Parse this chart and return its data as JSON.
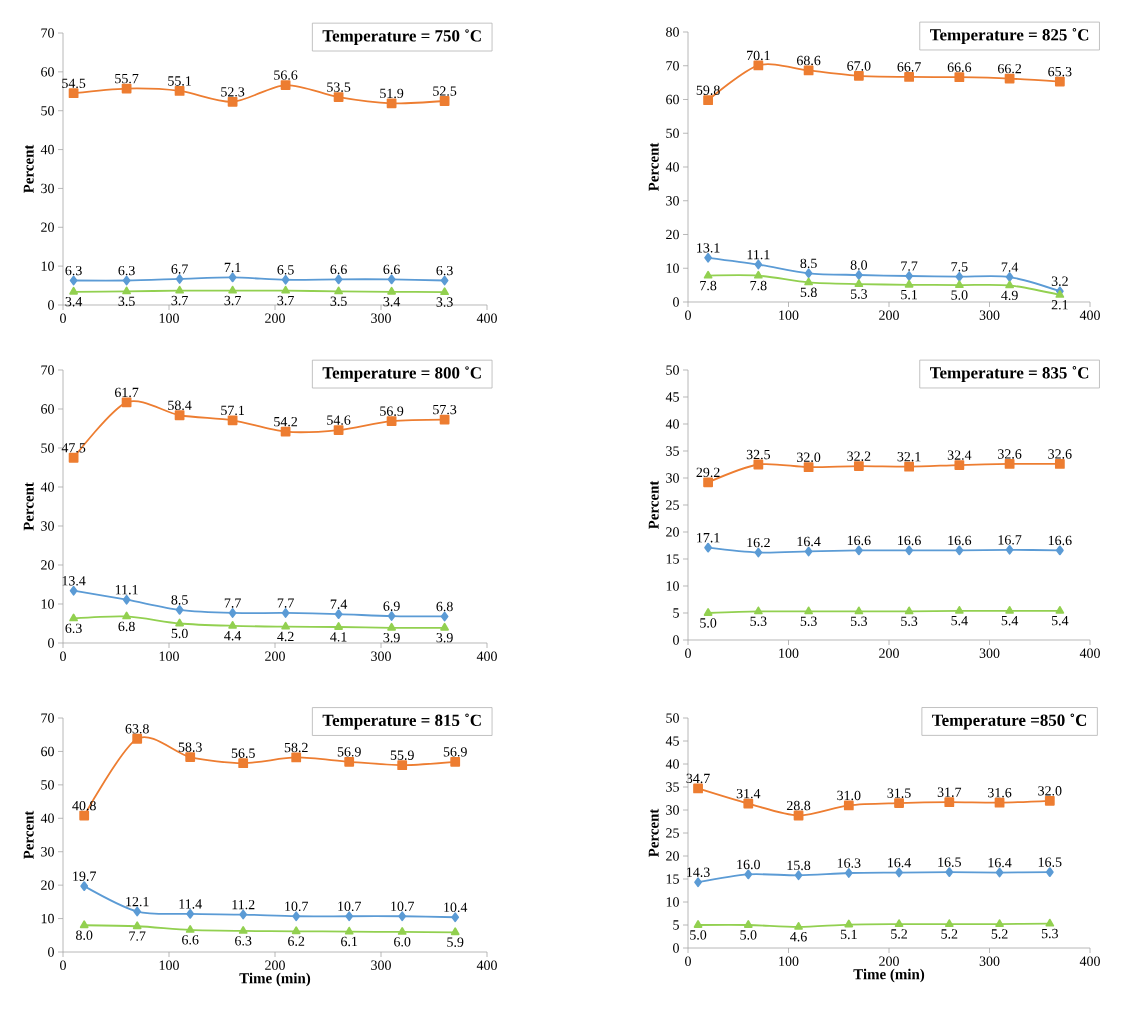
{
  "chart_data": [
    {
      "type": "line",
      "title": "Temperature = 750 ˚C",
      "ylabel": "Percent",
      "x": [
        10,
        60,
        110,
        160,
        210,
        260,
        310,
        360
      ],
      "xlim": [
        0,
        400
      ],
      "xticks": [
        0,
        100,
        200,
        300,
        400
      ],
      "ylim": [
        0,
        70
      ],
      "yticks": [
        0,
        10,
        20,
        30,
        40,
        50,
        60,
        70
      ],
      "grid": false,
      "line_style": "solid",
      "series": [
        {
          "color": "#ed7d31",
          "marker": "square",
          "values": [
            54.5,
            55.7,
            55.1,
            52.3,
            56.6,
            53.5,
            51.9,
            52.5
          ],
          "value_labels": [
            "54.5",
            "55.7",
            "55.1",
            "52.3",
            "56.6",
            "53.5",
            "51.9",
            "52.5"
          ]
        },
        {
          "color": "#5b9bd5",
          "marker": "diamond",
          "values": [
            6.3,
            6.3,
            6.7,
            7.1,
            6.5,
            6.6,
            6.6,
            6.3
          ],
          "value_labels": [
            "6.3",
            "6.3",
            "6.7",
            "7.1",
            "6.5",
            "6.6",
            "6.6",
            "6.3"
          ]
        },
        {
          "color": "#92d050",
          "marker": "triangle",
          "values": [
            3.4,
            3.5,
            3.7,
            3.7,
            3.7,
            3.5,
            3.4,
            3.3
          ],
          "value_labels": [
            "3.4",
            "3.5",
            "3.7",
            "3.7",
            "3.7",
            "3.5",
            "3.4",
            "3.3"
          ]
        }
      ]
    },
    {
      "type": "line",
      "title": "Temperature = 825 ˚C",
      "ylabel": "Percent",
      "x": [
        20,
        70,
        120,
        170,
        220,
        270,
        320,
        370
      ],
      "xlim": [
        0,
        400
      ],
      "xticks": [
        0,
        100,
        200,
        300,
        400
      ],
      "ylim": [
        0,
        80
      ],
      "yticks": [
        0,
        10,
        20,
        30,
        40,
        50,
        60,
        70,
        80
      ],
      "grid": false,
      "line_style": "solid",
      "series": [
        {
          "color": "#ed7d31",
          "marker": "square",
          "values": [
            59.8,
            70.1,
            68.6,
            67.0,
            66.7,
            66.6,
            66.2,
            65.3
          ],
          "value_labels": [
            "59.8",
            "70.1",
            "68.6",
            "67.0",
            "66.7",
            "66.6",
            "66.2",
            "65.3"
          ]
        },
        {
          "color": "#5b9bd5",
          "marker": "diamond",
          "values": [
            13.1,
            11.1,
            8.5,
            8.0,
            7.7,
            7.5,
            7.4,
            3.2
          ],
          "value_labels": [
            "13.1",
            "11.1",
            "8.5",
            "8.0",
            "7.7",
            "7.5",
            "7.4",
            "3.2"
          ]
        },
        {
          "color": "#92d050",
          "marker": "triangle",
          "values": [
            7.8,
            7.8,
            5.8,
            5.3,
            5.1,
            5.0,
            4.9,
            2.1
          ],
          "value_labels": [
            "7.8",
            "7.8",
            "5.8",
            "5.3",
            "5.1",
            "5.0",
            "4.9",
            "2.1"
          ]
        }
      ]
    },
    {
      "type": "line",
      "title": "Temperature = 800 ˚C",
      "ylabel": "Percent",
      "x": [
        10,
        60,
        110,
        160,
        210,
        260,
        310,
        360
      ],
      "xlim": [
        0,
        400
      ],
      "xticks": [
        0,
        100,
        200,
        300,
        400
      ],
      "ylim": [
        0,
        70
      ],
      "yticks": [
        0,
        10,
        20,
        30,
        40,
        50,
        60,
        70
      ],
      "grid": false,
      "line_style": "solid",
      "series": [
        {
          "color": "#ed7d31",
          "marker": "square",
          "values": [
            47.5,
            61.7,
            58.4,
            57.1,
            54.2,
            54.6,
            56.9,
            57.3
          ],
          "value_labels": [
            "47.5",
            "61.7",
            "58.4",
            "57.1",
            "54.2",
            "54.6",
            "56.9",
            "57.3"
          ]
        },
        {
          "color": "#5b9bd5",
          "marker": "diamond",
          "values": [
            13.4,
            11.1,
            8.5,
            7.7,
            7.7,
            7.4,
            6.9,
            6.8
          ],
          "value_labels": [
            "13.4",
            "11.1",
            "8.5",
            "7.7",
            "7.7",
            "7.4",
            "6.9",
            "6.8"
          ]
        },
        {
          "color": "#92d050",
          "marker": "triangle",
          "values": [
            6.3,
            6.8,
            5.0,
            4.4,
            4.2,
            4.1,
            3.9,
            3.9
          ],
          "value_labels": [
            "6.3",
            "6.8",
            "5.0",
            "4.4",
            "4.2",
            "4.1",
            "3.9",
            "3.9"
          ]
        }
      ]
    },
    {
      "type": "line",
      "title": "Temperature = 835 ˚C",
      "ylabel": "Percent",
      "x": [
        20,
        70,
        120,
        170,
        220,
        270,
        320,
        370
      ],
      "xlim": [
        0,
        400
      ],
      "xticks": [
        0,
        100,
        200,
        300,
        400
      ],
      "ylim": [
        0,
        50
      ],
      "yticks": [
        0,
        5,
        10,
        15,
        20,
        25,
        30,
        35,
        40,
        45,
        50
      ],
      "grid": false,
      "line_style": "solid",
      "series": [
        {
          "color": "#ed7d31",
          "marker": "square",
          "values": [
            29.2,
            32.5,
            32.0,
            32.2,
            32.1,
            32.4,
            32.6,
            32.6
          ],
          "value_labels": [
            "29.2",
            "32.5",
            "32.0",
            "32.2",
            "32.1",
            "32.4",
            "32.6",
            "32.6"
          ]
        },
        {
          "color": "#5b9bd5",
          "marker": "diamond",
          "values": [
            17.1,
            16.2,
            16.4,
            16.6,
            16.6,
            16.6,
            16.7,
            16.6
          ],
          "value_labels": [
            "17.1",
            "16.2",
            "16.4",
            "16.6",
            "16.6",
            "16.6",
            "16.7",
            "16.6"
          ]
        },
        {
          "color": "#92d050",
          "marker": "triangle",
          "values": [
            5.0,
            5.3,
            5.3,
            5.3,
            5.3,
            5.4,
            5.4,
            5.4
          ],
          "value_labels": [
            "5.0",
            "5.3",
            "5.3",
            "5.3",
            "5.3",
            "5.4",
            "5.4",
            "5.4"
          ]
        }
      ]
    },
    {
      "type": "line",
      "title": "Temperature = 815 ˚C",
      "xlabel": "Time (min)",
      "ylabel": "Percent",
      "x": [
        20,
        70,
        120,
        170,
        220,
        270,
        320,
        370
      ],
      "xlim": [
        0,
        400
      ],
      "xticks": [
        0,
        100,
        200,
        300,
        400
      ],
      "ylim": [
        0,
        70
      ],
      "yticks": [
        0,
        10,
        20,
        30,
        40,
        50,
        60,
        70
      ],
      "grid": false,
      "line_style": "solid",
      "series": [
        {
          "color": "#ed7d31",
          "marker": "square",
          "values": [
            40.8,
            63.8,
            58.3,
            56.5,
            58.2,
            56.9,
            55.9,
            56.9
          ],
          "value_labels": [
            "40.8",
            "63.8",
            "58.3",
            "56.5",
            "58.2",
            "56.9",
            "55.9",
            "56.9"
          ]
        },
        {
          "color": "#5b9bd5",
          "marker": "diamond",
          "values": [
            19.7,
            12.1,
            11.4,
            11.2,
            10.7,
            10.7,
            10.7,
            10.4
          ],
          "value_labels": [
            "19.7",
            "12.1",
            "11.4",
            "11.2",
            "10.7",
            "10.7",
            "10.7",
            "10.4"
          ]
        },
        {
          "color": "#92d050",
          "marker": "triangle",
          "values": [
            8.0,
            7.7,
            6.6,
            6.3,
            6.2,
            6.1,
            6.0,
            5.9
          ],
          "value_labels": [
            "8.0",
            "7.7",
            "6.6",
            "6.3",
            "6.2",
            "6.1",
            "6.0",
            "5.9"
          ]
        }
      ]
    },
    {
      "type": "line",
      "title": "Temperature =850 ˚C",
      "xlabel": "Time (min)",
      "ylabel": "Percent",
      "x": [
        10,
        60,
        110,
        160,
        210,
        260,
        310,
        360
      ],
      "xlim": [
        0,
        400
      ],
      "xticks": [
        0,
        100,
        200,
        300,
        400
      ],
      "ylim": [
        0,
        50
      ],
      "yticks": [
        0,
        5,
        10,
        15,
        20,
        25,
        30,
        35,
        40,
        45,
        50
      ],
      "grid": false,
      "line_style": "solid",
      "series": [
        {
          "color": "#ed7d31",
          "marker": "square",
          "values": [
            34.7,
            31.4,
            28.8,
            31.0,
            31.5,
            31.7,
            31.6,
            32.0
          ],
          "value_labels": [
            "34.7",
            "31.4",
            "28.8",
            "31.0",
            "31.5",
            "31.7",
            "31.6",
            "32.0"
          ]
        },
        {
          "color": "#5b9bd5",
          "marker": "diamond",
          "values": [
            14.3,
            16.0,
            15.8,
            16.3,
            16.4,
            16.5,
            16.4,
            16.5
          ],
          "value_labels": [
            "14.3",
            "16.0",
            "15.8",
            "16.3",
            "16.4",
            "16.5",
            "16.4",
            "16.5"
          ]
        },
        {
          "color": "#92d050",
          "marker": "triangle",
          "values": [
            5.0,
            5.0,
            4.6,
            5.1,
            5.2,
            5.2,
            5.2,
            5.3
          ],
          "value_labels": [
            "5.0",
            "5.0",
            "4.6",
            "5.1",
            "5.2",
            "5.2",
            "5.2",
            "5.3"
          ]
        }
      ]
    }
  ]
}
